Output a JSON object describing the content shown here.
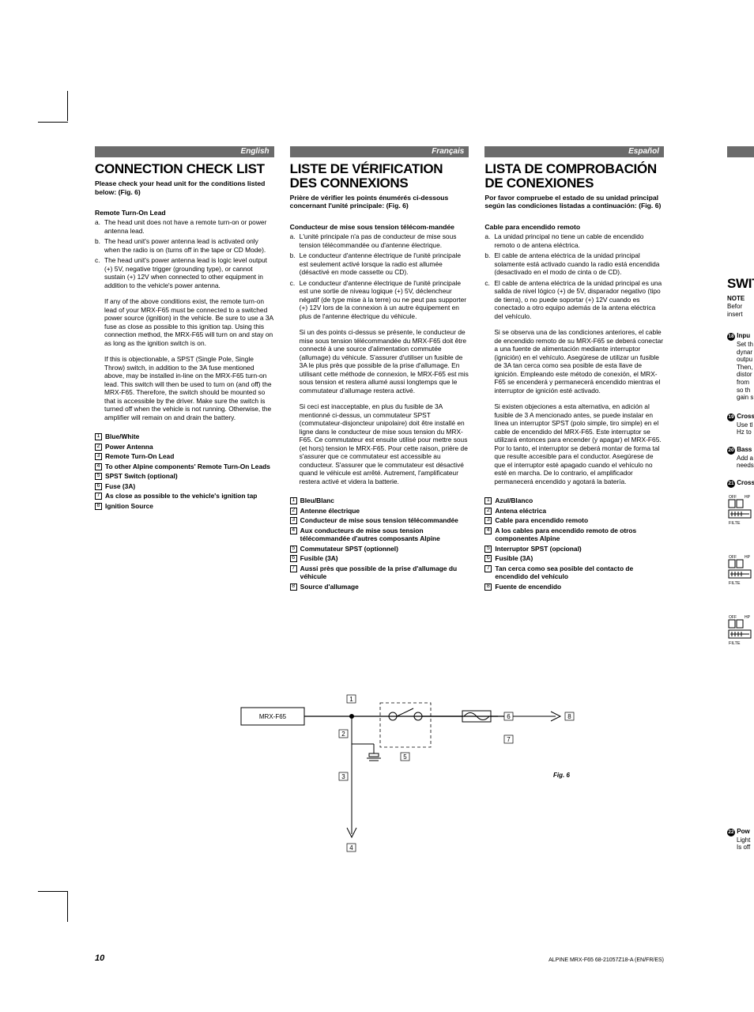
{
  "page_number": "10",
  "footer_code": "ALPINE MRX-F65 68-21057Z18-A (EN/FR/ES)",
  "diagram": {
    "model": "MRX-F65",
    "fig_label": "Fig. 6",
    "callouts": [
      "1",
      "2",
      "3",
      "4",
      "5",
      "6",
      "7",
      "8"
    ]
  },
  "columns": [
    {
      "lang": "English",
      "heading": "CONNECTION CHECK LIST",
      "intro": "Please check your head unit for the conditions listed below: (Fig. 6)",
      "subhead": "Remote Turn-On Lead",
      "items": [
        {
          "l": "a.",
          "t": "The head unit does not have a remote turn-on or power antenna lead."
        },
        {
          "l": "b.",
          "t": "The head unit's power antenna lead is activated only when the radio is on (turns off in the tape or CD Mode)."
        },
        {
          "l": "c.",
          "t": "The head unit's power antenna lead is logic level output (+) 5V, negative trigger (grounding type), or cannot sustain (+) 12V when connected to other equipment in addition to the vehicle's power antenna."
        }
      ],
      "paras": [
        "If any of the above conditions exist, the remote turn-on lead of your MRX-F65 must be connected to a switched power source (ignition) in the vehicle. Be sure to use a 3A fuse as close as possible to this ignition tap. Using this connection method, the MRX-F65 will turn on and stay on as long as the ignition switch is on.",
        "If this is objectionable, a SPST (Single Pole, Single Throw) switch, in addition to the 3A fuse mentioned above, may be installed in-line on the MRX-F65 turn-on lead. This switch will then be used to turn on (and off) the MRX-F65. Therefore, the switch should be mounted so that is accessible by the driver. Make sure the switch is turned off when the vehicle is not running. Otherwise, the amplifier will remain on and drain the battery."
      ],
      "numbered": [
        "Blue/White",
        "Power Antenna",
        "Remote Turn-On Lead",
        "To other Alpine components' Remote Turn-On Leads",
        "SPST Switch (optional)",
        "Fuse (3A)",
        "As close as possible to the vehicle's ignition tap",
        "Ignition Source"
      ]
    },
    {
      "lang": "Français",
      "heading": "LISTE DE VÉRIFICATION DES CONNEXIONS",
      "intro": "Prière de vérifier les points énumérés ci-dessous concernant l'unité principale: (Fig. 6)",
      "subhead": "Conducteur de mise sous tension télécom-mandée",
      "items": [
        {
          "l": "a.",
          "t": "L'unité principale n'a pas de conducteur de mise sous tension télécommandée ou d'antenne électrique."
        },
        {
          "l": "b.",
          "t": "Le conducteur d'antenne électrique de l'unité principale est seulement activé lorsque la radio est allumée (désactivé en mode cassette ou CD)."
        },
        {
          "l": "c.",
          "t": "Le conducteur d'antenne électrique de l'unité principale est une sortie de niveau logique (+) 5V, déclencheur négatif (de type mise à la terre) ou ne peut pas supporter (+) 12V lors de la connexion à un autre équipement en plus de l'antenne électrique du véhicule."
        }
      ],
      "paras": [
        "Si un des points ci-dessus se présente, le conducteur de mise sous tension télécommandée du MRX-F65 doit être connecté à une source d'alimentation commutée (allumage) du véhicule. S'assurer d'utiliser un fusible de 3A le plus près que possible de la prise d'allumage. En utilisant cette méthode de connexion, le MRX-F65 est mis sous tension et restera allumé aussi longtemps que le commutateur d'allumage restera activé.",
        "Si ceci est inacceptable, en plus du fusible de 3A mentionné ci-dessus, un commutateur SPST (commutateur-disjoncteur unipolaire) doit être installé en ligne dans le conducteur de mise sous tension du MRX-F65. Ce commutateur est ensuite utilisé pour mettre sous (et hors) tension le MRX-F65. Pour cette raison, prière de s'assurer que ce commutateur est accessible au conducteur. S'assurer que le commutateur est désactivé quand le véhicule est arrêté. Autrement, l'amplificateur restera activé et videra la batterie."
      ],
      "numbered": [
        "Bleu/Blanc",
        "Antenne électrique",
        "Conducteur de mise sous tension télécommandée",
        "Aux conducteurs de mise sous tension télécommandée d'autres composants Alpine",
        "Commutateur SPST (optionnel)",
        "Fusible (3A)",
        "Aussi près que possible de la prise d'allumage du véhicule",
        "Source d'allumage"
      ]
    },
    {
      "lang": "Español",
      "heading": "LISTA DE COMPROBACIÓN DE CONEXIONES",
      "intro": "Por favor compruebe el estado de su unidad principal según las condiciones listadas a continuación: (Fig. 6)",
      "subhead": "Cable para encendido remoto",
      "items": [
        {
          "l": "a.",
          "t": "La unidad principal no tiene un cable de encendido remoto o de antena eléctrica."
        },
        {
          "l": "b.",
          "t": "El cable de antena eléctrica de la unidad principal solamente está activado cuando la radio está encendida (desactivado en el modo de cinta o de CD)."
        },
        {
          "l": "c.",
          "t": "El cable de antena eléctrica de la unidad principal es una salida de nivel lógico (+) de 5V, disparador negativo (tipo de tierra), o no puede soportar (+) 12V cuando es conectado a otro equipo además de la antena eléctrica del vehículo."
        }
      ],
      "paras": [
        "Si se observa una de las condiciones anteriores, el cable de encendido remoto de su MRX-F65 se deberá conectar a una fuente de alimentación mediante interruptor (ignición) en el vehículo. Asegúrese de utilizar un fusible de 3A tan cerca como sea posible de esta llave de ignición. Empleando este método de conexión, el MRX-F65 se encenderá y permanecerá encendido mientras el interruptor de ignición esté activado.",
        "Si existen objeciones a esta alternativa, en adición al fusible de 3 A mencionado antes, se puede instalar en línea un interruptor SPST (polo simple, tiro simple) en el cable de encendido del MRX-F65. Este interruptor se utilizará entonces para encender (y apagar) el MRX-F65. Por lo tanto, el interruptor se deberá montar de forma tal que resulte accesible para el conductor. Asegúrese de que el interruptor esté apagado cuando el vehículo no esté en marcha. De lo contrario, el amplificador permanecerá encendido y agotará la batería."
      ],
      "numbered": [
        "Azul/Blanco",
        "Antena eléctrica",
        "Cable para encendido remoto",
        "A los cables para encendido remoto de otros componentes Alpine",
        "Interruptor SPST (opcional)",
        "Fusible (3A)",
        "Tan cerca como sea posible del contacto de encendido del vehículo",
        "Fuente de encendido"
      ]
    }
  ],
  "cut": {
    "heading": "SWIT",
    "note": "NOTE",
    "l1": "Befor",
    "l2": "insert",
    "r1": {
      "n": "18",
      "t": "Inpu",
      "lines": [
        "Set th",
        "dynar",
        "outpu",
        "Then,",
        "distor",
        "from",
        "so th",
        "gain s"
      ]
    },
    "r2": {
      "n": "19",
      "t": "Cross",
      "lines": [
        "Use tl",
        "Hz to"
      ]
    },
    "r3": {
      "n": "20",
      "t": "Bass",
      "lines": [
        "Add a",
        "needs"
      ]
    },
    "r4": {
      "n": "21",
      "t": "Cross"
    },
    "r5": {
      "n": "22",
      "t": "Pow",
      "lines": [
        "Light",
        "Is off"
      ]
    },
    "filter": {
      "off": "OFF",
      "hp": "HP",
      "label": "FILTE"
    }
  }
}
